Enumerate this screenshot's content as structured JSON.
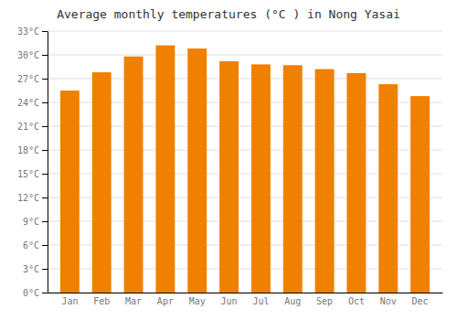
{
  "chart_data": {
    "type": "bar",
    "title": "Average monthly temperatures (°C ) in Nong Yasai",
    "categories": [
      "Jan",
      "Feb",
      "Mar",
      "Apr",
      "May",
      "Jun",
      "Jul",
      "Aug",
      "Sep",
      "Oct",
      "Nov",
      "Dec"
    ],
    "values": [
      25.5,
      27.8,
      29.8,
      31.2,
      30.8,
      29.2,
      28.8,
      28.7,
      28.2,
      27.7,
      26.3,
      24.8
    ],
    "color": "#F08000",
    "ylim": [
      0,
      33
    ],
    "yticks": [
      {
        "value": 0,
        "label": "0°C"
      },
      {
        "value": 3,
        "label": "3°C"
      },
      {
        "value": 6,
        "label": "6°C"
      },
      {
        "value": 9,
        "label": "9°C"
      },
      {
        "value": 12,
        "label": "12°C"
      },
      {
        "value": 15,
        "label": "15°C"
      },
      {
        "value": 18,
        "label": "18°C"
      },
      {
        "value": 21,
        "label": "21°C"
      },
      {
        "value": 24,
        "label": "24°C"
      },
      {
        "value": 27,
        "label": "27°C"
      },
      {
        "value": 30,
        "label": "30°C"
      },
      {
        "value": 33,
        "label": "33°C"
      }
    ],
    "grid": true
  }
}
